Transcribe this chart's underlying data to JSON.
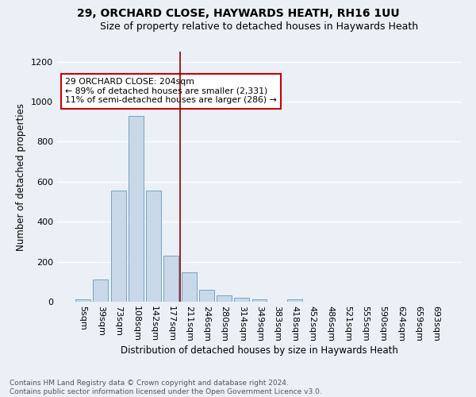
{
  "title1": "29, ORCHARD CLOSE, HAYWARDS HEATH, RH16 1UU",
  "title2": "Size of property relative to detached houses in Haywards Heath",
  "xlabel": "Distribution of detached houses by size in Haywards Heath",
  "ylabel": "Number of detached properties",
  "bar_labels": [
    "5sqm",
    "39sqm",
    "73sqm",
    "108sqm",
    "142sqm",
    "177sqm",
    "211sqm",
    "246sqm",
    "280sqm",
    "314sqm",
    "349sqm",
    "383sqm",
    "418sqm",
    "452sqm",
    "486sqm",
    "521sqm",
    "555sqm",
    "590sqm",
    "624sqm",
    "659sqm",
    "693sqm"
  ],
  "bar_values": [
    10,
    113,
    556,
    930,
    556,
    230,
    148,
    60,
    33,
    20,
    10,
    0,
    10,
    0,
    0,
    0,
    0,
    0,
    0,
    0,
    0
  ],
  "bar_color": "#c8d8e8",
  "bar_edge_color": "#6699bb",
  "vline_color": "#8b0000",
  "vline_pos": 5.5,
  "annotation_text": "29 ORCHARD CLOSE: 204sqm\n← 89% of detached houses are smaller (2,331)\n11% of semi-detached houses are larger (286) →",
  "annotation_box_color": "white",
  "annotation_box_edge": "#cc0000",
  "ylim": [
    0,
    1250
  ],
  "yticks": [
    0,
    200,
    400,
    600,
    800,
    1000,
    1200
  ],
  "footer": "Contains HM Land Registry data © Crown copyright and database right 2024.\nContains public sector information licensed under the Open Government Licence v3.0.",
  "bg_color": "#eaf0f6",
  "grid_color": "white",
  "title1_fontsize": 10,
  "title2_fontsize": 9,
  "xlabel_fontsize": 8.5,
  "ylabel_fontsize": 8.5,
  "tick_fontsize": 8,
  "footer_fontsize": 6.5
}
